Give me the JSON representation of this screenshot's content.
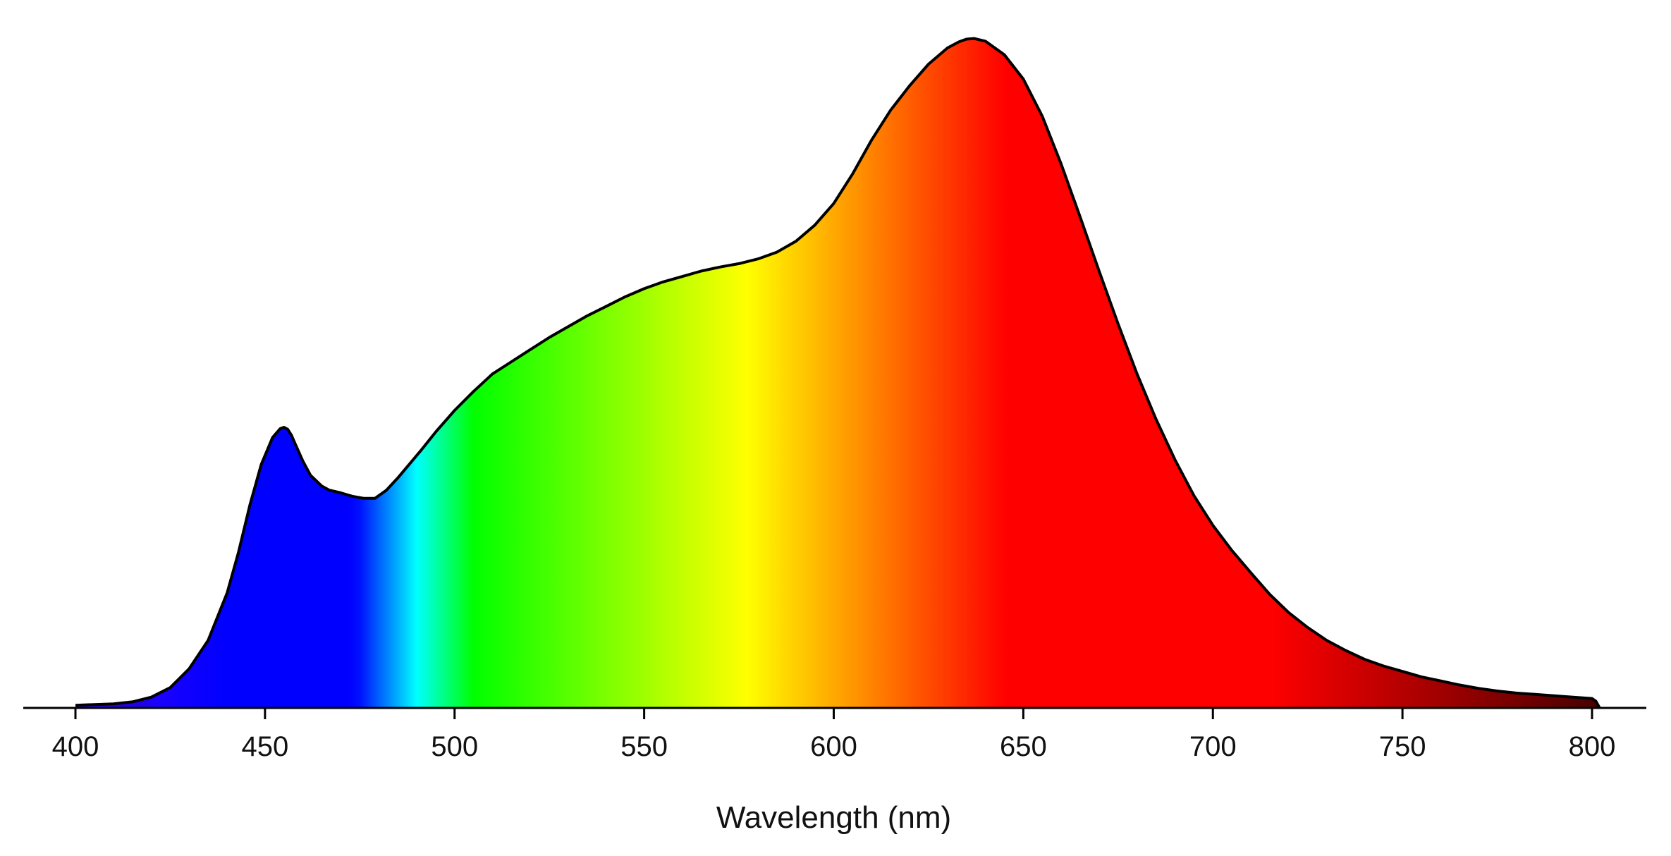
{
  "chart_data": {
    "type": "area",
    "title": "",
    "xlabel": "Wavelength (nm)",
    "ylabel": "",
    "xlim": [
      400,
      802
    ],
    "ylim": [
      0,
      1.0
    ],
    "grid": false,
    "legend": "none",
    "x_ticks": [
      400,
      450,
      500,
      550,
      600,
      650,
      700,
      750,
      800
    ],
    "x_tick_labels": [
      "400",
      "450",
      "500",
      "550",
      "600",
      "650",
      "700",
      "750",
      "800"
    ],
    "series": [
      {
        "fill": "visible-spectrum-gradient",
        "outline_color": "#000000",
        "x": [
          400,
          410,
          415,
          420,
          425,
          430,
          435,
          440,
          443,
          446,
          449,
          452,
          454,
          455,
          456,
          457,
          458,
          460,
          462,
          465,
          467,
          470,
          473,
          476,
          479,
          482,
          485,
          488,
          491,
          495,
          500,
          505,
          510,
          515,
          520,
          525,
          530,
          535,
          540,
          545,
          550,
          555,
          560,
          565,
          570,
          575,
          580,
          585,
          590,
          595,
          600,
          605,
          610,
          615,
          620,
          625,
          630,
          633,
          635,
          637,
          640,
          645,
          650,
          655,
          660,
          665,
          670,
          675,
          680,
          685,
          690,
          695,
          700,
          705,
          710,
          715,
          720,
          725,
          730,
          735,
          740,
          745,
          750,
          755,
          760,
          765,
          770,
          775,
          780,
          785,
          790,
          795,
          800,
          801,
          802
        ],
        "y": [
          0.004,
          0.006,
          0.009,
          0.016,
          0.03,
          0.058,
          0.1,
          0.17,
          0.23,
          0.3,
          0.36,
          0.4,
          0.413,
          0.415,
          0.412,
          0.403,
          0.39,
          0.365,
          0.344,
          0.328,
          0.322,
          0.318,
          0.313,
          0.31,
          0.31,
          0.322,
          0.34,
          0.36,
          0.38,
          0.408,
          0.44,
          0.468,
          0.494,
          0.512,
          0.53,
          0.548,
          0.564,
          0.58,
          0.594,
          0.608,
          0.62,
          0.63,
          0.638,
          0.646,
          0.652,
          0.657,
          0.664,
          0.674,
          0.69,
          0.714,
          0.746,
          0.79,
          0.84,
          0.884,
          0.92,
          0.952,
          0.976,
          0.985,
          0.989,
          0.99,
          0.986,
          0.966,
          0.93,
          0.875,
          0.804,
          0.726,
          0.646,
          0.568,
          0.494,
          0.427,
          0.367,
          0.314,
          0.27,
          0.233,
          0.2,
          0.168,
          0.141,
          0.119,
          0.1,
          0.085,
          0.072,
          0.062,
          0.054,
          0.046,
          0.04,
          0.034,
          0.029,
          0.025,
          0.022,
          0.02,
          0.018,
          0.016,
          0.014,
          0.01,
          0.0
        ]
      }
    ]
  }
}
